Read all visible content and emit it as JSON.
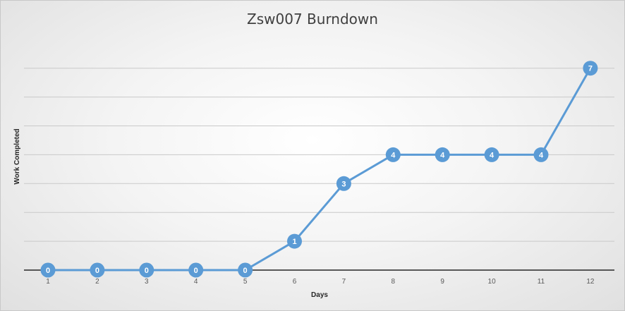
{
  "chart_data": {
    "type": "line",
    "title": "Zsw007 Burndown",
    "xlabel": "Days",
    "ylabel": "Work Completed",
    "categories": [
      "1",
      "2",
      "3",
      "4",
      "5",
      "6",
      "7",
      "8",
      "9",
      "10",
      "11",
      "12"
    ],
    "series": [
      {
        "values": [
          0,
          0,
          0,
          0,
          0,
          1,
          3,
          4,
          4,
          4,
          4,
          7
        ]
      }
    ],
    "ylim": [
      0,
      7.5
    ],
    "y_gridline_step": 1,
    "y_tick_labels_shown": false,
    "data_labels_shown": true,
    "grid": true,
    "legend": "none",
    "line_color": "#5b9bd5",
    "marker": "circle",
    "gridline_color": "#c9c9c9",
    "axis_color": "#262626"
  }
}
